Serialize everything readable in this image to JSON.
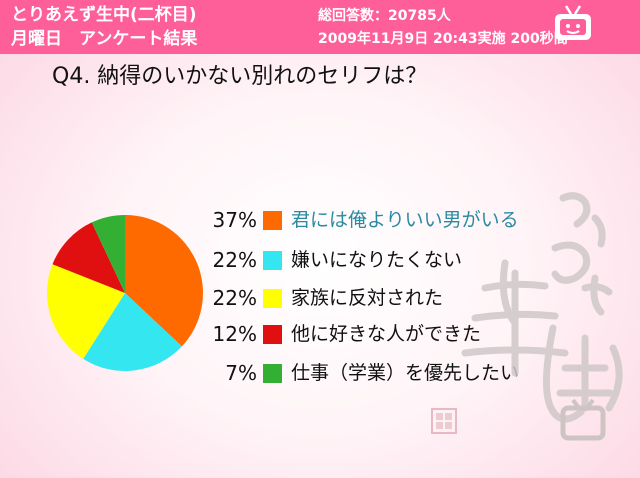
{
  "header": {
    "title": "とりあえず生中(二杯目)",
    "subtitle": "月曜日　アンケート結果",
    "total_answers": "総回答数：20785人",
    "datetime": "2009年11月9日 20:43実施 200秒間"
  },
  "question": "Q4. 納得のいかない別れのセリフは？",
  "chart_data": {
    "type": "pie",
    "title": "",
    "categories": [
      "君には俺よりいい男がいる",
      "嫌いになりたくない",
      "家族に反対された",
      "他に好きな人ができた",
      "仕事（学業）を優先したい"
    ],
    "values": [
      37,
      22,
      22,
      12,
      7
    ],
    "labels": [
      "37%",
      "22%",
      "22%",
      "12%",
      "7%"
    ],
    "colors": [
      "#ff6a00",
      "#33e6f0",
      "#ffff00",
      "#e01010",
      "#33b033"
    ],
    "legend_position": "right"
  },
  "colors": {
    "header_bg": "#ff5f98",
    "header_text": "#ffffff"
  },
  "icons": {
    "header_icon": "tv-icon",
    "watermark": "toriaezu-namachu-logo"
  }
}
